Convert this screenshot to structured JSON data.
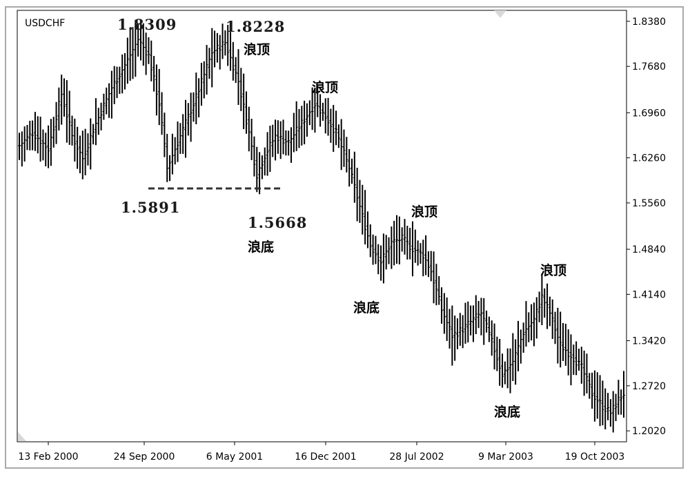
{
  "chart_data": {
    "type": "ohlc",
    "symbol": "USDCHF",
    "title": "",
    "xlabel": "",
    "ylabel": "",
    "ylim": [
      1.185,
      1.855
    ],
    "y_ticks": [
      "1.8380",
      "1.7680",
      "1.6960",
      "1.6260",
      "1.5560",
      "1.4840",
      "1.4140",
      "1.3420",
      "1.2720",
      "1.2020"
    ],
    "x_ticks": [
      "13 Feb 2000",
      "24 Sep 2000",
      "6 May 2001",
      "16 Dec 2001",
      "28 Jul 2002",
      "9 Mar 2003",
      "19 Oct 2003"
    ],
    "anchors": [
      [
        0,
        1.645
      ],
      [
        5,
        1.665
      ],
      [
        11,
        1.64
      ],
      [
        16,
        1.725
      ],
      [
        20,
        1.66
      ],
      [
        24,
        1.625
      ],
      [
        28,
        1.67
      ],
      [
        35,
        1.735
      ],
      [
        40,
        1.77
      ],
      [
        45,
        1.81
      ],
      [
        49,
        1.785
      ],
      [
        53,
        1.71
      ],
      [
        56,
        1.61
      ],
      [
        61,
        1.66
      ],
      [
        67,
        1.72
      ],
      [
        73,
        1.79
      ],
      [
        78,
        1.805
      ],
      [
        83,
        1.745
      ],
      [
        87,
        1.665
      ],
      [
        90,
        1.6
      ],
      [
        93,
        1.63
      ],
      [
        97,
        1.66
      ],
      [
        102,
        1.65
      ],
      [
        107,
        1.68
      ],
      [
        112,
        1.71
      ],
      [
        116,
        1.69
      ],
      [
        120,
        1.665
      ],
      [
        125,
        1.61
      ],
      [
        129,
        1.55
      ],
      [
        133,
        1.49
      ],
      [
        137,
        1.465
      ],
      [
        141,
        1.495
      ],
      [
        145,
        1.5
      ],
      [
        149,
        1.485
      ],
      [
        153,
        1.475
      ],
      [
        156,
        1.45
      ],
      [
        160,
        1.39
      ],
      [
        164,
        1.35
      ],
      [
        168,
        1.36
      ],
      [
        172,
        1.375
      ],
      [
        175,
        1.385
      ],
      [
        179,
        1.34
      ],
      [
        183,
        1.29
      ],
      [
        187,
        1.31
      ],
      [
        191,
        1.355
      ],
      [
        195,
        1.375
      ],
      [
        198,
        1.41
      ],
      [
        201,
        1.385
      ],
      [
        205,
        1.335
      ],
      [
        209,
        1.32
      ],
      [
        213,
        1.3
      ],
      [
        217,
        1.26
      ],
      [
        221,
        1.24
      ],
      [
        224,
        1.23
      ],
      [
        227,
        1.25
      ],
      [
        229,
        1.26
      ]
    ],
    "annotations": [
      {
        "text": "1.8309"
      },
      {
        "text": "1.8228"
      },
      {
        "text": "浪顶"
      },
      {
        "text": "浪顶"
      },
      {
        "text": "1.5891"
      },
      {
        "text": "1.5668"
      },
      {
        "text": "浪底"
      },
      {
        "text": "浪顶"
      },
      {
        "text": "浪底"
      },
      {
        "text": "浪顶"
      },
      {
        "text": "浪底"
      }
    ],
    "bar_color": "#000000",
    "support_line_color": "#333333",
    "grid": false
  }
}
